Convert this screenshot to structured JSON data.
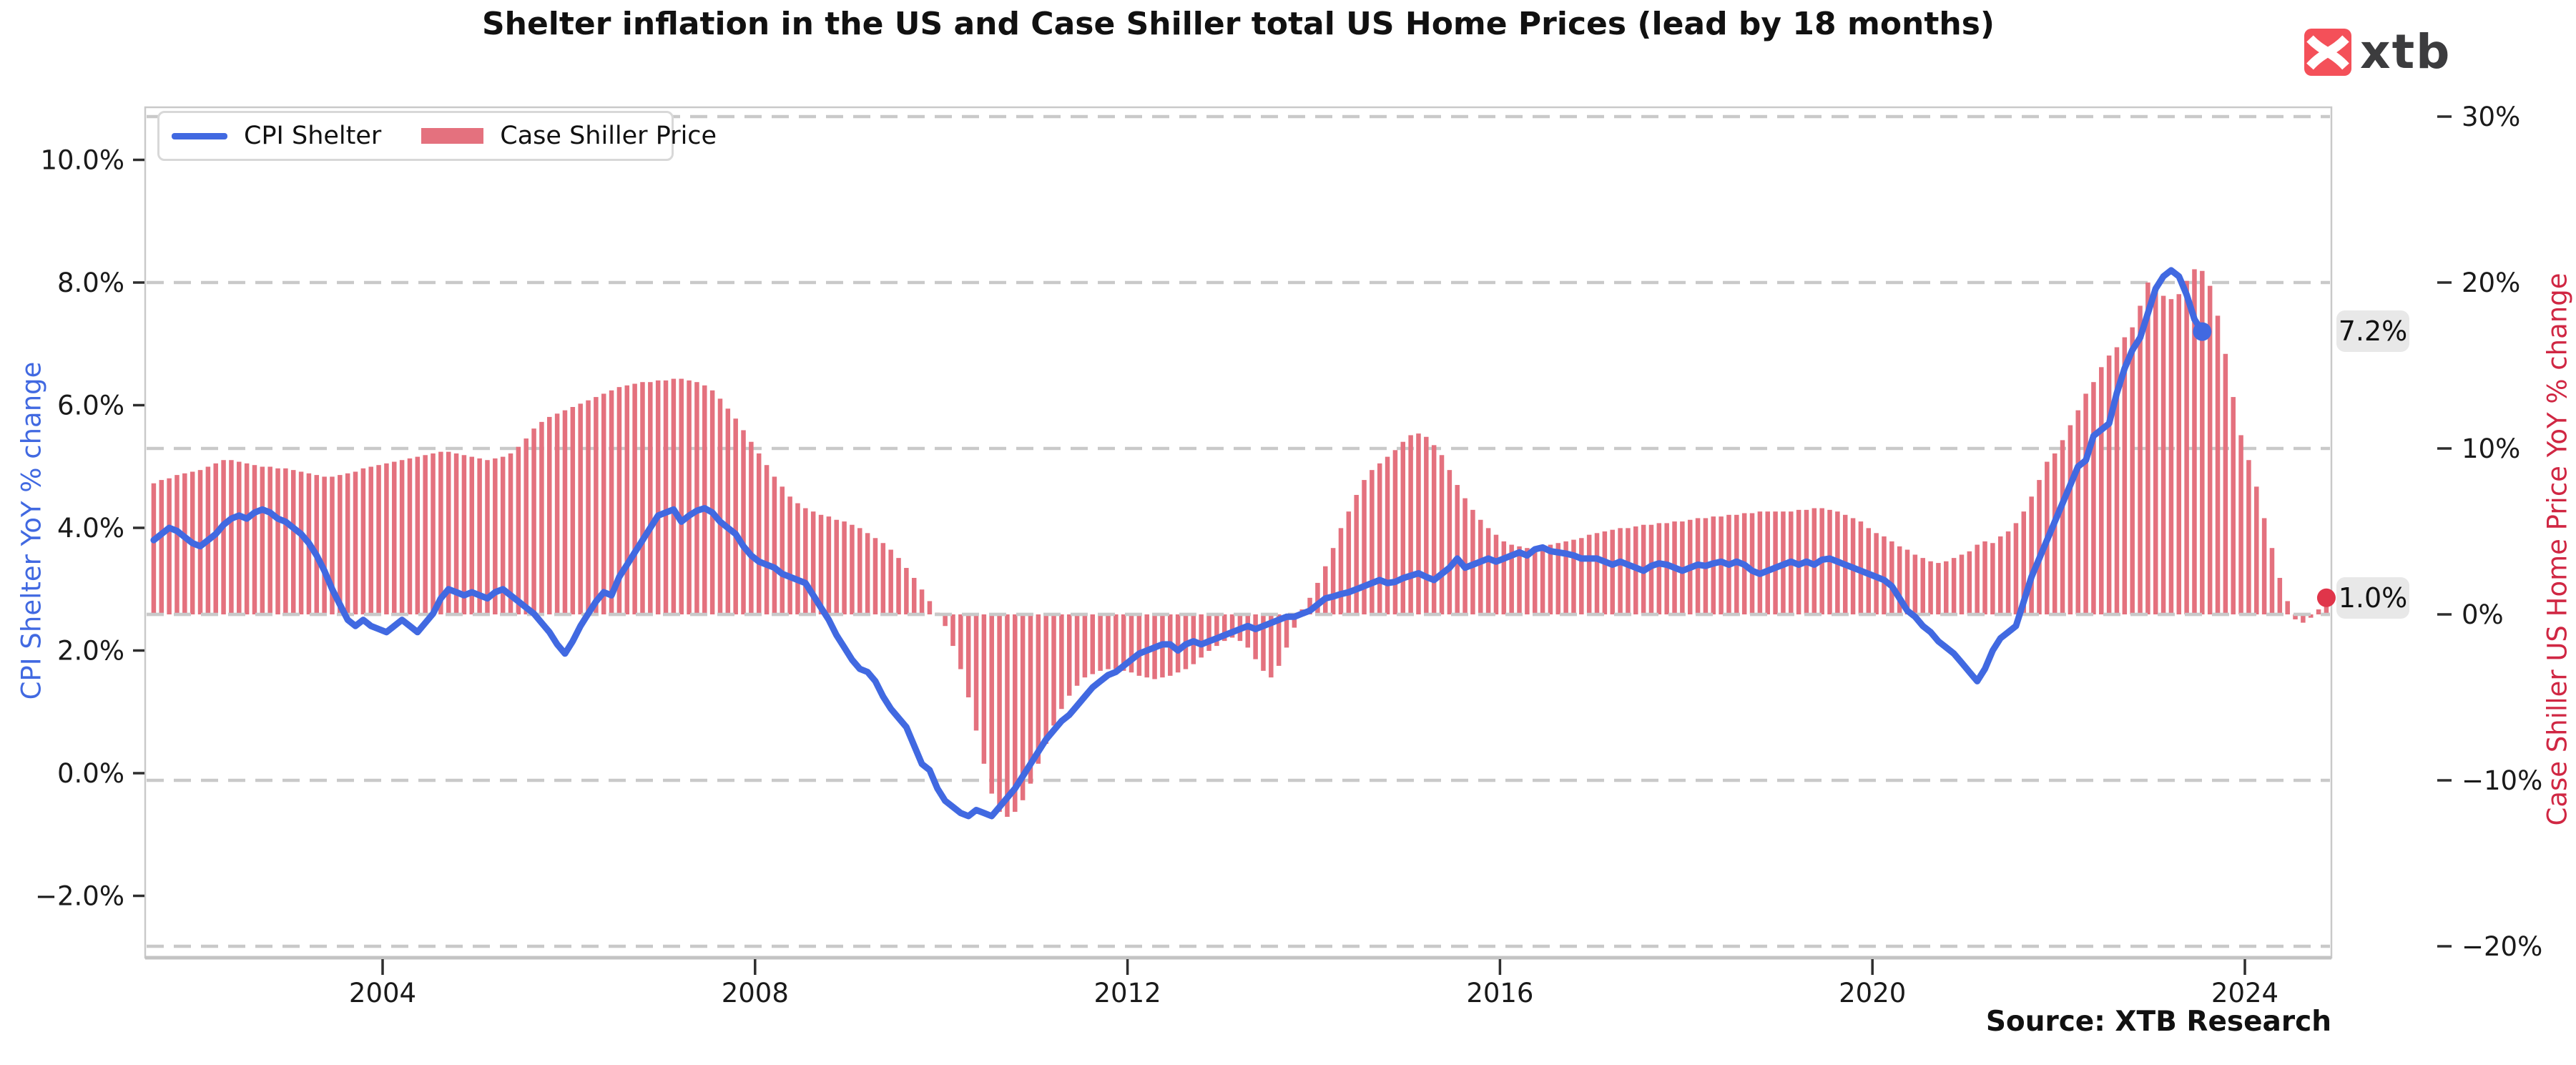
{
  "title": "Shelter inflation in the US and Case Shiller total US Home Prices (lead by 18 months)",
  "source": "Source: XTB Research",
  "logo": {
    "text": "xtb",
    "color": "#f45059"
  },
  "legend": {
    "items": [
      {
        "label": "CPI Shelter",
        "type": "line",
        "color": "#4169e1"
      },
      {
        "label": "Case Shiller Price",
        "type": "bar",
        "color": "#e4717e"
      }
    ]
  },
  "annotations": [
    {
      "text": "7.2%",
      "attached_to": "CPI Shelter last point"
    },
    {
      "text": "1.0%",
      "attached_to": "Case Shiller Price last point"
    }
  ],
  "chart_data": {
    "type": "bar+line",
    "title": "Shelter inflation in the US and Case Shiller total US Home Prices (lead by 18 months)",
    "grid": "horizontal dashed, drawn at right-axis tick values",
    "legend_position": "upper left",
    "x_axis": {
      "tick_labels": [
        "2004",
        "2008",
        "2012",
        "2016",
        "2020",
        "2024"
      ],
      "tick_years": [
        2004,
        2008,
        2012,
        2016,
        2020,
        2024
      ]
    },
    "left_axis": {
      "label": "CPI Shelter YoY % change",
      "color": "#4169e1",
      "tick_labels": [
        "10.0%",
        "8.0%",
        "6.0%",
        "4.0%",
        "2.0%",
        "0.0%",
        "−2.0%"
      ],
      "tick_values": [
        10,
        8,
        6,
        4,
        2,
        0,
        -2
      ],
      "range": [
        -3.0,
        10.9
      ]
    },
    "right_axis": {
      "label": "Case Shiller US Home Price YoY % change",
      "color": "#d02743",
      "tick_labels": [
        "30%",
        "20%",
        "10%",
        "0%",
        "−10%",
        "−20%"
      ],
      "tick_values": [
        30,
        20,
        10,
        0,
        -10,
        -20
      ],
      "range": [
        -20.7,
        30.6
      ]
    },
    "series": [
      {
        "name": "CPI Shelter",
        "type": "line",
        "axis": "left",
        "color": "#4169e1",
        "end_dot": true,
        "end_value_label": "7.2%",
        "start_year": 2001,
        "start_month": 7,
        "values": [
          3.8,
          3.9,
          4.0,
          3.95,
          3.85,
          3.75,
          3.7,
          3.8,
          3.9,
          4.05,
          4.15,
          4.2,
          4.15,
          4.25,
          4.3,
          4.25,
          4.15,
          4.1,
          4.0,
          3.9,
          3.75,
          3.55,
          3.3,
          3.0,
          2.75,
          2.5,
          2.4,
          2.5,
          2.4,
          2.35,
          2.3,
          2.4,
          2.5,
          2.4,
          2.3,
          2.45,
          2.6,
          2.85,
          3.0,
          2.95,
          2.9,
          2.95,
          2.9,
          2.85,
          2.95,
          3.0,
          2.9,
          2.8,
          2.7,
          2.6,
          2.45,
          2.3,
          2.1,
          1.95,
          2.15,
          2.4,
          2.6,
          2.8,
          2.95,
          2.9,
          3.2,
          3.4,
          3.6,
          3.8,
          4.0,
          4.2,
          4.25,
          4.3,
          4.1,
          4.2,
          4.28,
          4.32,
          4.25,
          4.1,
          4.0,
          3.9,
          3.7,
          3.55,
          3.45,
          3.4,
          3.35,
          3.25,
          3.2,
          3.15,
          3.1,
          2.9,
          2.7,
          2.5,
          2.25,
          2.05,
          1.85,
          1.7,
          1.65,
          1.5,
          1.25,
          1.05,
          0.9,
          0.75,
          0.45,
          0.15,
          0.05,
          -0.25,
          -0.45,
          -0.55,
          -0.65,
          -0.7,
          -0.6,
          -0.65,
          -0.7,
          -0.55,
          -0.4,
          -0.25,
          -0.05,
          0.15,
          0.35,
          0.55,
          0.7,
          0.85,
          0.95,
          1.1,
          1.25,
          1.4,
          1.5,
          1.6,
          1.65,
          1.75,
          1.85,
          1.95,
          2.0,
          2.05,
          2.1,
          2.1,
          2.0,
          2.1,
          2.15,
          2.1,
          2.15,
          2.2,
          2.25,
          2.3,
          2.35,
          2.4,
          2.35,
          2.4,
          2.45,
          2.5,
          2.55,
          2.55,
          2.6,
          2.65,
          2.75,
          2.85,
          2.88,
          2.92,
          2.95,
          3.0,
          3.05,
          3.1,
          3.15,
          3.1,
          3.12,
          3.18,
          3.22,
          3.26,
          3.2,
          3.15,
          3.25,
          3.35,
          3.5,
          3.35,
          3.4,
          3.45,
          3.5,
          3.45,
          3.5,
          3.55,
          3.6,
          3.55,
          3.65,
          3.68,
          3.62,
          3.6,
          3.58,
          3.55,
          3.5,
          3.5,
          3.5,
          3.45,
          3.4,
          3.45,
          3.4,
          3.35,
          3.3,
          3.38,
          3.42,
          3.4,
          3.35,
          3.3,
          3.35,
          3.4,
          3.38,
          3.42,
          3.45,
          3.4,
          3.45,
          3.4,
          3.3,
          3.25,
          3.3,
          3.35,
          3.4,
          3.45,
          3.4,
          3.45,
          3.4,
          3.48,
          3.5,
          3.45,
          3.4,
          3.35,
          3.3,
          3.25,
          3.2,
          3.15,
          3.05,
          2.85,
          2.65,
          2.55,
          2.4,
          2.3,
          2.15,
          2.05,
          1.95,
          1.8,
          1.65,
          1.5,
          1.7,
          2.0,
          2.2,
          2.3,
          2.4,
          2.8,
          3.2,
          3.5,
          3.8,
          4.1,
          4.4,
          4.7,
          5.0,
          5.1,
          5.5,
          5.6,
          5.7,
          6.2,
          6.6,
          6.9,
          7.1,
          7.5,
          7.9,
          8.1,
          8.2,
          8.1,
          7.8,
          7.4,
          7.2
        ]
      },
      {
        "name": "Case Shiller Price",
        "type": "bar",
        "axis": "right",
        "color": "#e4717e",
        "end_dot": true,
        "end_dot_color": "#e0354a",
        "end_value_label": "1.0%",
        "start_year": 2001,
        "start_month": 7,
        "values": [
          7.9,
          8.1,
          8.2,
          8.4,
          8.5,
          8.6,
          8.7,
          8.9,
          9.1,
          9.3,
          9.3,
          9.2,
          9.1,
          9.0,
          8.9,
          8.9,
          8.8,
          8.8,
          8.7,
          8.6,
          8.5,
          8.4,
          8.3,
          8.3,
          8.4,
          8.5,
          8.6,
          8.8,
          8.9,
          9.0,
          9.1,
          9.2,
          9.3,
          9.4,
          9.5,
          9.6,
          9.7,
          9.8,
          9.8,
          9.7,
          9.6,
          9.5,
          9.4,
          9.3,
          9.4,
          9.5,
          9.7,
          10.1,
          10.6,
          11.2,
          11.6,
          11.9,
          12.1,
          12.3,
          12.5,
          12.7,
          12.9,
          13.1,
          13.3,
          13.5,
          13.7,
          13.8,
          13.9,
          14.0,
          14.0,
          14.1,
          14.1,
          14.2,
          14.2,
          14.1,
          14.0,
          13.8,
          13.5,
          13.0,
          12.4,
          11.8,
          11.1,
          10.4,
          9.7,
          9.0,
          8.3,
          7.7,
          7.1,
          6.7,
          6.4,
          6.2,
          6.0,
          5.9,
          5.7,
          5.6,
          5.4,
          5.2,
          4.9,
          4.6,
          4.3,
          3.9,
          3.4,
          2.8,
          2.2,
          1.5,
          0.8,
          0.1,
          -0.7,
          -1.9,
          -3.3,
          -5.0,
          -7.0,
          -9.0,
          -10.8,
          -11.9,
          -12.2,
          -11.9,
          -11.2,
          -10.2,
          -9.0,
          -7.8,
          -6.7,
          -5.7,
          -4.9,
          -4.3,
          -3.8,
          -3.6,
          -3.4,
          -3.3,
          -3.3,
          -3.4,
          -3.5,
          -3.7,
          -3.8,
          -3.9,
          -3.8,
          -3.7,
          -3.5,
          -3.3,
          -3.0,
          -2.6,
          -2.2,
          -1.9,
          -1.6,
          -1.4,
          -1.6,
          -2.0,
          -2.7,
          -3.4,
          -3.8,
          -3.1,
          -2.0,
          -0.8,
          0.3,
          1.0,
          1.9,
          2.9,
          4.0,
          5.2,
          6.2,
          7.2,
          8.1,
          8.7,
          9.1,
          9.5,
          9.9,
          10.4,
          10.8,
          10.9,
          10.7,
          10.2,
          9.6,
          8.7,
          7.8,
          7.0,
          6.3,
          5.7,
          5.2,
          4.8,
          4.4,
          4.2,
          4.1,
          4.0,
          4.0,
          4.1,
          4.2,
          4.3,
          4.4,
          4.5,
          4.6,
          4.8,
          4.9,
          5.0,
          5.1,
          5.2,
          5.2,
          5.3,
          5.4,
          5.4,
          5.5,
          5.5,
          5.6,
          5.6,
          5.7,
          5.8,
          5.8,
          5.9,
          5.9,
          6.0,
          6.0,
          6.1,
          6.1,
          6.2,
          6.2,
          6.2,
          6.2,
          6.2,
          6.3,
          6.3,
          6.4,
          6.4,
          6.3,
          6.2,
          6.0,
          5.8,
          5.6,
          5.2,
          4.9,
          4.7,
          4.4,
          4.1,
          3.9,
          3.6,
          3.4,
          3.2,
          3.1,
          3.2,
          3.4,
          3.6,
          3.8,
          4.2,
          4.4,
          4.3,
          4.7,
          5.0,
          5.5,
          6.2,
          7.1,
          8.1,
          9.2,
          9.7,
          10.5,
          11.4,
          12.3,
          13.3,
          14.0,
          14.9,
          15.6,
          16.1,
          16.7,
          17.3,
          18.6,
          20.0,
          19.8,
          19.2,
          19.0,
          19.3,
          20.1,
          20.8,
          20.7,
          19.8,
          18.0,
          15.7,
          13.1,
          10.8,
          9.3,
          7.7,
          5.8,
          4.0,
          2.2,
          0.8,
          -0.3,
          -0.5,
          -0.2,
          0.3,
          1.0
        ]
      }
    ]
  }
}
